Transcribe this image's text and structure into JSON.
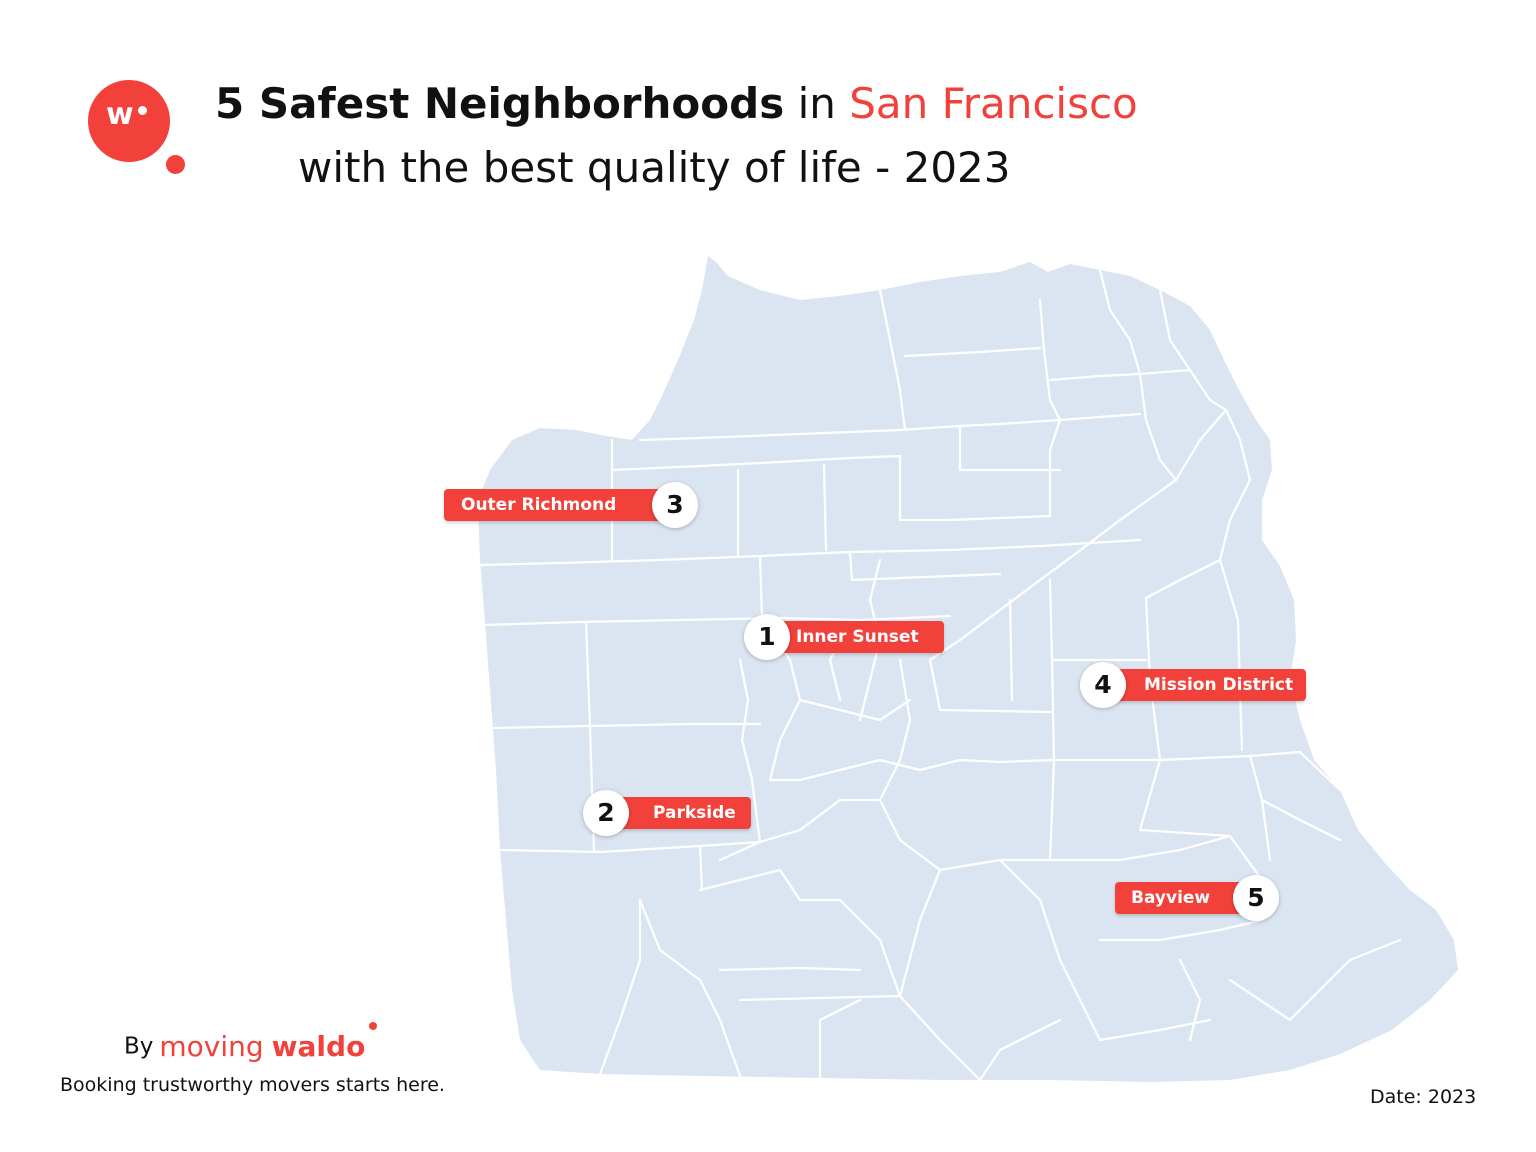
{
  "header": {
    "title_bold": "5 Safest Neighborhoods",
    "title_connector": "in",
    "title_accent": "San Francisco",
    "subtitle": "with the best quality of life - 2023"
  },
  "logo": {
    "letter": "w",
    "brand_color": "#f2413b"
  },
  "map": {
    "fill_color": "#dbe5f1",
    "line_color": "#ffffff",
    "markers": [
      {
        "rank": "1",
        "name": "Inner Sunset"
      },
      {
        "rank": "2",
        "name": "Parkside"
      },
      {
        "rank": "3",
        "name": "Outer Richmond"
      },
      {
        "rank": "4",
        "name": "Mission District"
      },
      {
        "rank": "5",
        "name": "Bayview"
      }
    ]
  },
  "footer": {
    "by": "By",
    "brand_moving": "moving",
    "brand_waldo": "waldo",
    "tagline": "Booking trustworthy movers starts here.",
    "date": "Date: 2023"
  }
}
